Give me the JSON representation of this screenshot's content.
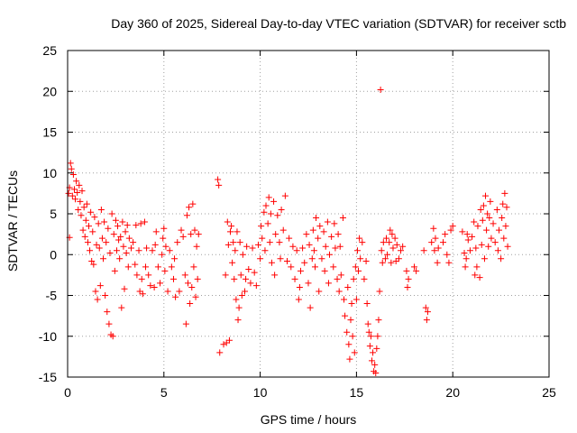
{
  "chart_data": {
    "type": "scatter",
    "title": "Day 360 of 2025, Sidereal Day-to-day VTEC variation (SDTVAR) for receiver sctb",
    "xlabel": "GPS time / hours",
    "ylabel": "SDTVAR / TECUs",
    "xlim": [
      0,
      25
    ],
    "ylim": [
      -15,
      25
    ],
    "x_ticks": [
      0,
      5,
      10,
      15,
      20,
      25
    ],
    "y_ticks": [
      -15,
      -10,
      -5,
      0,
      5,
      10,
      15,
      20,
      25
    ],
    "x_tick_labels": [
      "0",
      "5",
      "10",
      "15",
      "20",
      "25"
    ],
    "y_tick_labels": [
      "-15",
      "-10",
      "-5",
      "0",
      "5",
      "10",
      "15",
      "20",
      "25"
    ],
    "grid": true,
    "marker": "+",
    "marker_color": "#ff0000",
    "series": [
      {
        "name": "SDTVAR",
        "points": [
          [
            0.05,
            7.5
          ],
          [
            0.1,
            8.2
          ],
          [
            0.1,
            2.1
          ],
          [
            0.15,
            11.2
          ],
          [
            0.2,
            10.5
          ],
          [
            0.25,
            7.2
          ],
          [
            0.3,
            9.8
          ],
          [
            0.35,
            8.0
          ],
          [
            0.4,
            6.8
          ],
          [
            0.45,
            9.0
          ],
          [
            0.5,
            7.6
          ],
          [
            0.55,
            5.5
          ],
          [
            0.6,
            8.5
          ],
          [
            0.65,
            6.5
          ],
          [
            0.7,
            4.8
          ],
          [
            0.75,
            7.8
          ],
          [
            0.8,
            3.0
          ],
          [
            0.85,
            5.8
          ],
          [
            0.9,
            2.2
          ],
          [
            0.95,
            4.2
          ],
          [
            1.0,
            6.2
          ],
          [
            1.05,
            1.5
          ],
          [
            1.1,
            3.5
          ],
          [
            1.15,
            0.5
          ],
          [
            1.2,
            5.2
          ],
          [
            1.25,
            -0.8
          ],
          [
            1.3,
            2.8
          ],
          [
            1.35,
            -1.2
          ],
          [
            1.4,
            4.6
          ],
          [
            1.45,
            -4.5
          ],
          [
            1.5,
            1.2
          ],
          [
            1.55,
            -5.5
          ],
          [
            1.6,
            3.8
          ],
          [
            1.65,
            0.8
          ],
          [
            1.7,
            -3.8
          ],
          [
            1.75,
            5.5
          ],
          [
            1.8,
            2.0
          ],
          [
            1.85,
            -0.5
          ],
          [
            1.9,
            4.0
          ],
          [
            1.95,
            -5.0
          ],
          [
            2.0,
            1.5
          ],
          [
            2.05,
            -7.0
          ],
          [
            2.1,
            3.2
          ],
          [
            2.15,
            -8.5
          ],
          [
            2.2,
            0.2
          ],
          [
            2.25,
            -9.8
          ],
          [
            2.3,
            5.0
          ],
          [
            2.35,
            -10.0
          ],
          [
            2.4,
            2.5
          ],
          [
            2.45,
            -2.0
          ],
          [
            2.5,
            4.2
          ],
          [
            2.55,
            0.5
          ],
          [
            2.6,
            3.5
          ],
          [
            2.65,
            1.8
          ],
          [
            2.7,
            -0.5
          ],
          [
            2.75,
            2.2
          ],
          [
            2.8,
            -6.5
          ],
          [
            2.85,
            4.0
          ],
          [
            2.9,
            1.0
          ],
          [
            2.95,
            -4.2
          ],
          [
            3.0,
            2.8
          ],
          [
            3.05,
            0.2
          ],
          [
            3.1,
            3.6
          ],
          [
            3.15,
            -1.5
          ],
          [
            3.2,
            2.0
          ],
          [
            3.3,
            0.8
          ],
          [
            3.4,
            1.5
          ],
          [
            3.5,
            -1.2
          ],
          [
            3.55,
            3.6
          ],
          [
            3.6,
            -2.5
          ],
          [
            3.7,
            0.5
          ],
          [
            3.75,
            -4.5
          ],
          [
            3.8,
            3.8
          ],
          [
            3.85,
            -3.0
          ],
          [
            3.9,
            -4.8
          ],
          [
            4.0,
            4.0
          ],
          [
            4.05,
            -1.5
          ],
          [
            4.1,
            0.8
          ],
          [
            4.2,
            -2.5
          ],
          [
            4.3,
            -3.8
          ],
          [
            4.4,
            0.5
          ],
          [
            4.5,
            -4.0
          ],
          [
            4.55,
            1.2
          ],
          [
            4.6,
            2.8
          ],
          [
            4.7,
            -1.5
          ],
          [
            4.8,
            -3.5
          ],
          [
            4.9,
            0.0
          ],
          [
            4.95,
            2.0
          ],
          [
            5.0,
            3.2
          ],
          [
            5.05,
            -2.0
          ],
          [
            5.1,
            1.0
          ],
          [
            5.2,
            -4.5
          ],
          [
            5.3,
            0.5
          ],
          [
            5.4,
            -1.5
          ],
          [
            5.5,
            -3.0
          ],
          [
            5.55,
            -0.5
          ],
          [
            5.6,
            -5.2
          ],
          [
            5.7,
            1.5
          ],
          [
            5.8,
            -4.5
          ],
          [
            5.9,
            3.0
          ],
          [
            6.0,
            2.2
          ],
          [
            6.1,
            -2.5
          ],
          [
            6.15,
            -8.5
          ],
          [
            6.2,
            4.8
          ],
          [
            6.25,
            -3.5
          ],
          [
            6.3,
            5.8
          ],
          [
            6.35,
            -6.0
          ],
          [
            6.4,
            2.5
          ],
          [
            6.45,
            -4.0
          ],
          [
            6.5,
            6.2
          ],
          [
            6.55,
            -1.5
          ],
          [
            6.6,
            3.0
          ],
          [
            6.65,
            -5.2
          ],
          [
            6.7,
            1.0
          ],
          [
            6.75,
            -3.0
          ],
          [
            6.8,
            2.5
          ],
          [
            7.8,
            9.2
          ],
          [
            7.85,
            8.5
          ],
          [
            7.9,
            -12.0
          ],
          [
            8.1,
            -11.0
          ],
          [
            8.2,
            -2.5
          ],
          [
            8.25,
            -10.8
          ],
          [
            8.3,
            4.0
          ],
          [
            8.35,
            1.2
          ],
          [
            8.4,
            -10.5
          ],
          [
            8.45,
            2.8
          ],
          [
            8.5,
            3.5
          ],
          [
            8.55,
            -1.0
          ],
          [
            8.6,
            1.5
          ],
          [
            8.65,
            -3.0
          ],
          [
            8.7,
            0.5
          ],
          [
            8.75,
            -5.5
          ],
          [
            8.8,
            2.8
          ],
          [
            8.85,
            -8.0
          ],
          [
            8.9,
            -6.5
          ],
          [
            8.95,
            1.5
          ],
          [
            9.0,
            -2.5
          ],
          [
            9.05,
            -5.0
          ],
          [
            9.1,
            0.0
          ],
          [
            9.2,
            -4.5
          ],
          [
            9.25,
            -3.0
          ],
          [
            9.3,
            1.0
          ],
          [
            9.4,
            -1.8
          ],
          [
            9.5,
            -3.5
          ],
          [
            9.6,
            0.8
          ],
          [
            9.7,
            -2.2
          ],
          [
            9.8,
            -3.8
          ],
          [
            9.9,
            1.2
          ],
          [
            10.0,
            -0.5
          ],
          [
            10.05,
            3.5
          ],
          [
            10.1,
            2.0
          ],
          [
            10.2,
            5.2
          ],
          [
            10.25,
            0.5
          ],
          [
            10.3,
            6.0
          ],
          [
            10.4,
            3.8
          ],
          [
            10.45,
            7.0
          ],
          [
            10.5,
            1.5
          ],
          [
            10.55,
            5.0
          ],
          [
            10.6,
            -1.0
          ],
          [
            10.7,
            6.5
          ],
          [
            10.75,
            -2.5
          ],
          [
            10.8,
            2.5
          ],
          [
            10.9,
            4.8
          ],
          [
            11.0,
            1.5
          ],
          [
            11.05,
            -0.5
          ],
          [
            11.1,
            5.5
          ],
          [
            11.2,
            3.0
          ],
          [
            11.3,
            7.2
          ],
          [
            11.4,
            -0.8
          ],
          [
            11.5,
            2.0
          ],
          [
            11.6,
            -1.5
          ],
          [
            11.7,
            1.0
          ],
          [
            11.8,
            -3.0
          ],
          [
            11.9,
            0.5
          ],
          [
            12.0,
            -5.5
          ],
          [
            12.05,
            -4.0
          ],
          [
            12.1,
            -2.0
          ],
          [
            12.2,
            0.8
          ],
          [
            12.3,
            -1.0
          ],
          [
            12.4,
            2.5
          ],
          [
            12.5,
            -3.5
          ],
          [
            12.55,
            1.2
          ],
          [
            12.6,
            -6.5
          ],
          [
            12.7,
            -0.5
          ],
          [
            12.75,
            3.0
          ],
          [
            12.8,
            0.5
          ],
          [
            12.85,
            -1.5
          ],
          [
            12.9,
            4.5
          ],
          [
            13.0,
            2.0
          ],
          [
            13.05,
            -4.5
          ],
          [
            13.1,
            3.5
          ],
          [
            13.2,
            -0.5
          ],
          [
            13.3,
            2.8
          ],
          [
            13.35,
            -2.0
          ],
          [
            13.4,
            1.0
          ],
          [
            13.5,
            4.0
          ],
          [
            13.55,
            -3.5
          ],
          [
            13.6,
            0.0
          ],
          [
            13.7,
            2.2
          ],
          [
            13.8,
            -1.5
          ],
          [
            13.85,
            3.8
          ],
          [
            13.9,
            0.8
          ],
          [
            14.0,
            -3.0
          ],
          [
            14.05,
            2.5
          ],
          [
            14.1,
            -4.5
          ],
          [
            14.15,
            1.0
          ],
          [
            14.2,
            -2.5
          ],
          [
            14.3,
            4.5
          ],
          [
            14.35,
            -5.5
          ],
          [
            14.4,
            -7.5
          ],
          [
            14.5,
            -9.5
          ],
          [
            14.55,
            -4.0
          ],
          [
            14.6,
            -11.0
          ],
          [
            14.65,
            -12.8
          ],
          [
            14.7,
            -8.0
          ],
          [
            14.75,
            -6.0
          ],
          [
            14.8,
            -10.0
          ],
          [
            14.85,
            -3.0
          ],
          [
            14.9,
            -12.0
          ],
          [
            14.95,
            -1.5
          ],
          [
            15.0,
            -5.5
          ],
          [
            15.05,
            0.5
          ],
          [
            15.1,
            -2.0
          ],
          [
            15.15,
            2.0
          ],
          [
            15.2,
            -0.5
          ],
          [
            15.3,
            1.5
          ],
          [
            15.4,
            -3.0
          ],
          [
            15.5,
            -0.8
          ],
          [
            15.55,
            -6.0
          ],
          [
            15.6,
            -8.5
          ],
          [
            15.65,
            -9.5
          ],
          [
            15.7,
            -11.2
          ],
          [
            15.75,
            -10.0
          ],
          [
            15.8,
            -13.0
          ],
          [
            15.85,
            -12.0
          ],
          [
            15.9,
            -14.3
          ],
          [
            15.95,
            -13.5
          ],
          [
            16.0,
            -14.5
          ],
          [
            16.05,
            -11.5
          ],
          [
            16.1,
            -10.0
          ],
          [
            16.15,
            -8.0
          ],
          [
            16.2,
            -4.5
          ],
          [
            16.25,
            20.2
          ],
          [
            16.3,
            0.5
          ],
          [
            16.35,
            -1.0
          ],
          [
            16.4,
            1.5
          ],
          [
            16.5,
            -0.5
          ],
          [
            16.55,
            2.0
          ],
          [
            16.6,
            0.0
          ],
          [
            16.7,
            1.5
          ],
          [
            16.75,
            3.0
          ],
          [
            16.8,
            -1.0
          ],
          [
            16.85,
            2.5
          ],
          [
            16.9,
            0.8
          ],
          [
            17.0,
            2.0
          ],
          [
            17.05,
            -0.8
          ],
          [
            17.1,
            1.2
          ],
          [
            17.2,
            -0.5
          ],
          [
            17.3,
            0.5
          ],
          [
            17.4,
            1.0
          ],
          [
            17.6,
            -2.0
          ],
          [
            17.65,
            -4.0
          ],
          [
            17.7,
            -3.0
          ],
          [
            18.0,
            -1.5
          ],
          [
            18.1,
            -2.0
          ],
          [
            18.5,
            0.5
          ],
          [
            18.6,
            -6.5
          ],
          [
            18.65,
            -8.0
          ],
          [
            18.7,
            -7.0
          ],
          [
            18.9,
            1.5
          ],
          [
            19.0,
            3.2
          ],
          [
            19.05,
            0.5
          ],
          [
            19.1,
            2.0
          ],
          [
            19.2,
            -1.0
          ],
          [
            19.25,
            0.8
          ],
          [
            19.5,
            1.5
          ],
          [
            19.6,
            2.5
          ],
          [
            19.7,
            0.0
          ],
          [
            19.8,
            -1.0
          ],
          [
            19.9,
            3.0
          ],
          [
            20.0,
            3.5
          ],
          [
            20.5,
            2.8
          ],
          [
            20.6,
            0.2
          ],
          [
            20.65,
            -1.5
          ],
          [
            20.7,
            -0.5
          ],
          [
            20.75,
            2.5
          ],
          [
            20.8,
            1.8
          ],
          [
            20.9,
            0.5
          ],
          [
            21.0,
            2.2
          ],
          [
            21.1,
            4.0
          ],
          [
            21.15,
            -2.5
          ],
          [
            21.2,
            0.8
          ],
          [
            21.25,
            -1.5
          ],
          [
            21.3,
            3.5
          ],
          [
            21.4,
            -2.8
          ],
          [
            21.45,
            5.5
          ],
          [
            21.5,
            1.2
          ],
          [
            21.55,
            4.2
          ],
          [
            21.6,
            6.0
          ],
          [
            21.65,
            -0.5
          ],
          [
            21.7,
            7.2
          ],
          [
            21.75,
            3.0
          ],
          [
            21.8,
            5.0
          ],
          [
            21.85,
            1.0
          ],
          [
            21.9,
            4.5
          ],
          [
            21.95,
            6.5
          ],
          [
            22.0,
            2.0
          ],
          [
            22.1,
            3.8
          ],
          [
            22.2,
            1.5
          ],
          [
            22.3,
            5.5
          ],
          [
            22.35,
            0.5
          ],
          [
            22.4,
            3.0
          ],
          [
            22.5,
            -0.5
          ],
          [
            22.55,
            4.5
          ],
          [
            22.6,
            6.2
          ],
          [
            22.65,
            2.0
          ],
          [
            22.7,
            7.5
          ],
          [
            22.75,
            3.5
          ],
          [
            22.8,
            5.8
          ],
          [
            22.85,
            1.0
          ]
        ]
      }
    ]
  }
}
